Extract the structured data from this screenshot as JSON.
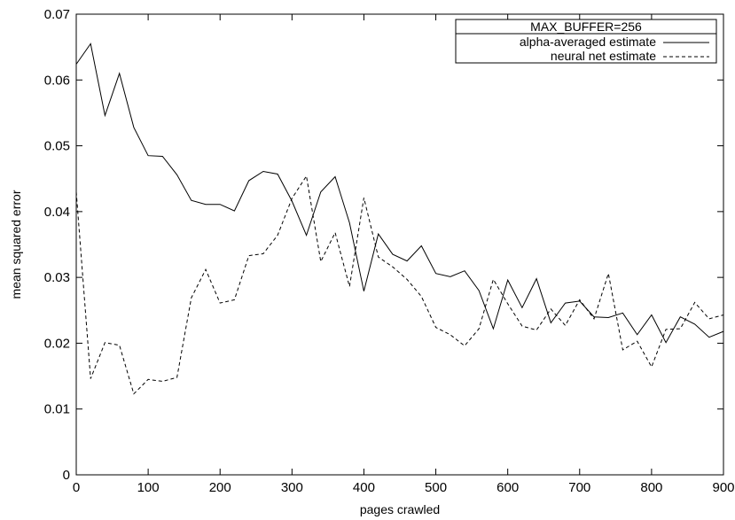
{
  "chart_data": {
    "type": "line",
    "title": "",
    "legend_title": "MAX_BUFFER=256",
    "legend_placement": "top-right",
    "xlabel": "pages crawled",
    "ylabel": "mean squared error",
    "xlim": [
      0,
      900
    ],
    "ylim": [
      0,
      0.07
    ],
    "grid": false,
    "x_ticks": [
      0,
      100,
      200,
      300,
      400,
      500,
      600,
      700,
      800,
      900
    ],
    "y_ticks": [
      0,
      0.01,
      0.02,
      0.03,
      0.04,
      0.05,
      0.06,
      0.07
    ],
    "x_tick_labels": [
      "0",
      "100",
      "200",
      "300",
      "400",
      "500",
      "600",
      "700",
      "800",
      "900"
    ],
    "y_tick_labels": [
      "0",
      "0.01",
      "0.02",
      "0.03",
      "0.04",
      "0.05",
      "0.06",
      "0.07"
    ],
    "x": [
      0,
      20,
      40,
      60,
      80,
      100,
      120,
      140,
      160,
      180,
      200,
      220,
      240,
      260,
      280,
      300,
      320,
      340,
      360,
      380,
      400,
      420,
      440,
      460,
      480,
      500,
      520,
      540,
      560,
      580,
      600,
      620,
      640,
      660,
      680,
      700,
      720,
      740,
      760,
      780,
      800,
      820,
      840,
      860,
      880,
      900
    ],
    "series": [
      {
        "name": "alpha-averaged estimate",
        "style": "solid",
        "color": "#000000",
        "values": [
          0.0624,
          0.0655,
          0.0546,
          0.061,
          0.0528,
          0.0485,
          0.0484,
          0.0456,
          0.0417,
          0.0411,
          0.0411,
          0.0401,
          0.0447,
          0.0461,
          0.0457,
          0.0416,
          0.0364,
          0.043,
          0.0453,
          0.0383,
          0.0279,
          0.0366,
          0.0335,
          0.0325,
          0.0348,
          0.0306,
          0.0301,
          0.031,
          0.028,
          0.0222,
          0.0296,
          0.0254,
          0.0298,
          0.0231,
          0.0261,
          0.0264,
          0.024,
          0.0239,
          0.0246,
          0.0213,
          0.0243,
          0.0201,
          0.024,
          0.0229,
          0.0209,
          0.0218
        ]
      },
      {
        "name": "neural net estimate",
        "style": "dashed",
        "color": "#000000",
        "values": [
          0.043,
          0.0146,
          0.0201,
          0.0197,
          0.0123,
          0.0145,
          0.0142,
          0.0148,
          0.0269,
          0.0312,
          0.0261,
          0.0266,
          0.0333,
          0.0336,
          0.0364,
          0.042,
          0.0454,
          0.0324,
          0.0368,
          0.0286,
          0.0421,
          0.0331,
          0.0316,
          0.0297,
          0.0271,
          0.0224,
          0.0213,
          0.0196,
          0.0222,
          0.0297,
          0.026,
          0.0226,
          0.022,
          0.0252,
          0.0227,
          0.0266,
          0.0237,
          0.0306,
          0.019,
          0.0203,
          0.0164,
          0.0221,
          0.0222,
          0.0262,
          0.0237,
          0.0243
        ]
      }
    ]
  }
}
